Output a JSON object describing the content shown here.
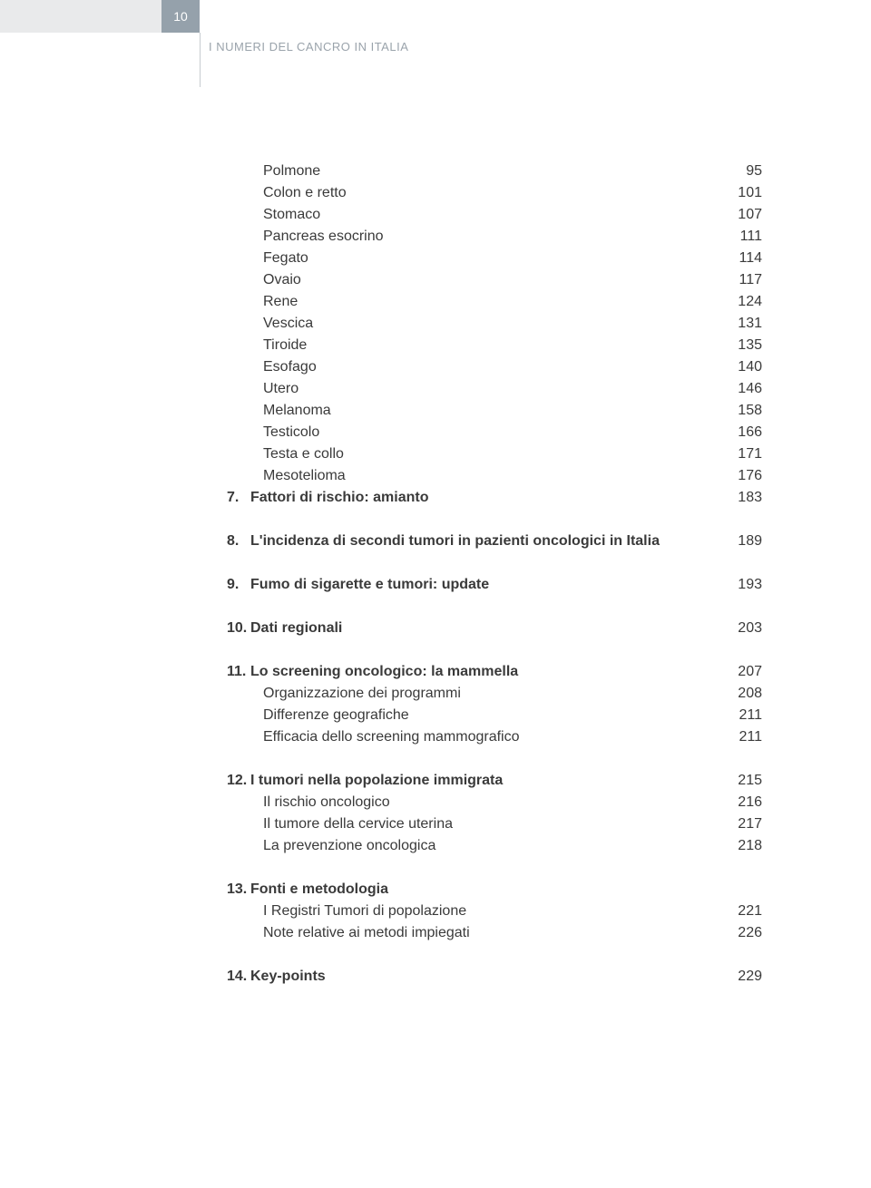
{
  "header": {
    "page_number": "10",
    "book_title": "I NUMERI DEL CANCRO IN ITALIA"
  },
  "toc": {
    "cont_items": [
      {
        "label": "Polmone",
        "page": "95"
      },
      {
        "label": "Colon e retto",
        "page": "101"
      },
      {
        "label": "Stomaco",
        "page": "107"
      },
      {
        "label": "Pancreas esocrino",
        "page": "111"
      },
      {
        "label": "Fegato",
        "page": "114"
      },
      {
        "label": "Ovaio",
        "page": "117"
      },
      {
        "label": "Rene",
        "page": "124"
      },
      {
        "label": "Vescica",
        "page": "131"
      },
      {
        "label": "Tiroide",
        "page": "135"
      },
      {
        "label": "Esofago",
        "page": "140"
      },
      {
        "label": "Utero",
        "page": "146"
      },
      {
        "label": "Melanoma",
        "page": "158"
      },
      {
        "label": "Testicolo",
        "page": "166"
      },
      {
        "label": "Testa e collo",
        "page": "171"
      },
      {
        "label": "Mesotelioma",
        "page": "176"
      }
    ],
    "sections": [
      {
        "num": "7.",
        "title": "Fattori di rischio: amianto",
        "page": "183",
        "subs": []
      },
      {
        "num": "8.",
        "title": "L'incidenza di secondi tumori in pazienti oncologici in Italia",
        "page": "189",
        "subs": []
      },
      {
        "num": "9.",
        "title": "Fumo di sigarette e tumori: update",
        "page": "193",
        "subs": []
      },
      {
        "num": "10.",
        "title": "Dati regionali",
        "page": "203",
        "subs": []
      },
      {
        "num": "11.",
        "title": "Lo screening oncologico: la mammella",
        "page": "207",
        "subs": [
          {
            "label": "Organizzazione dei programmi",
            "page": "208"
          },
          {
            "label": "Differenze geografiche",
            "page": "211"
          },
          {
            "label": "Efficacia dello screening mammografico",
            "page": "211"
          }
        ]
      },
      {
        "num": "12.",
        "title": "I tumori nella popolazione immigrata",
        "page": "215",
        "subs": [
          {
            "label": "Il rischio oncologico",
            "page": "216"
          },
          {
            "label": "Il tumore della cervice uterina",
            "page": "217"
          },
          {
            "label": "La prevenzione oncologica",
            "page": "218"
          }
        ]
      },
      {
        "num": "13.",
        "title": "Fonti e metodologia",
        "page": "",
        "subs": [
          {
            "label": "I Registri Tumori di popolazione",
            "page": "221"
          },
          {
            "label": "Note relative ai metodi impiegati",
            "page": "226"
          }
        ]
      },
      {
        "num": "14.",
        "title": "Key-points",
        "page": "229",
        "subs": []
      }
    ]
  }
}
